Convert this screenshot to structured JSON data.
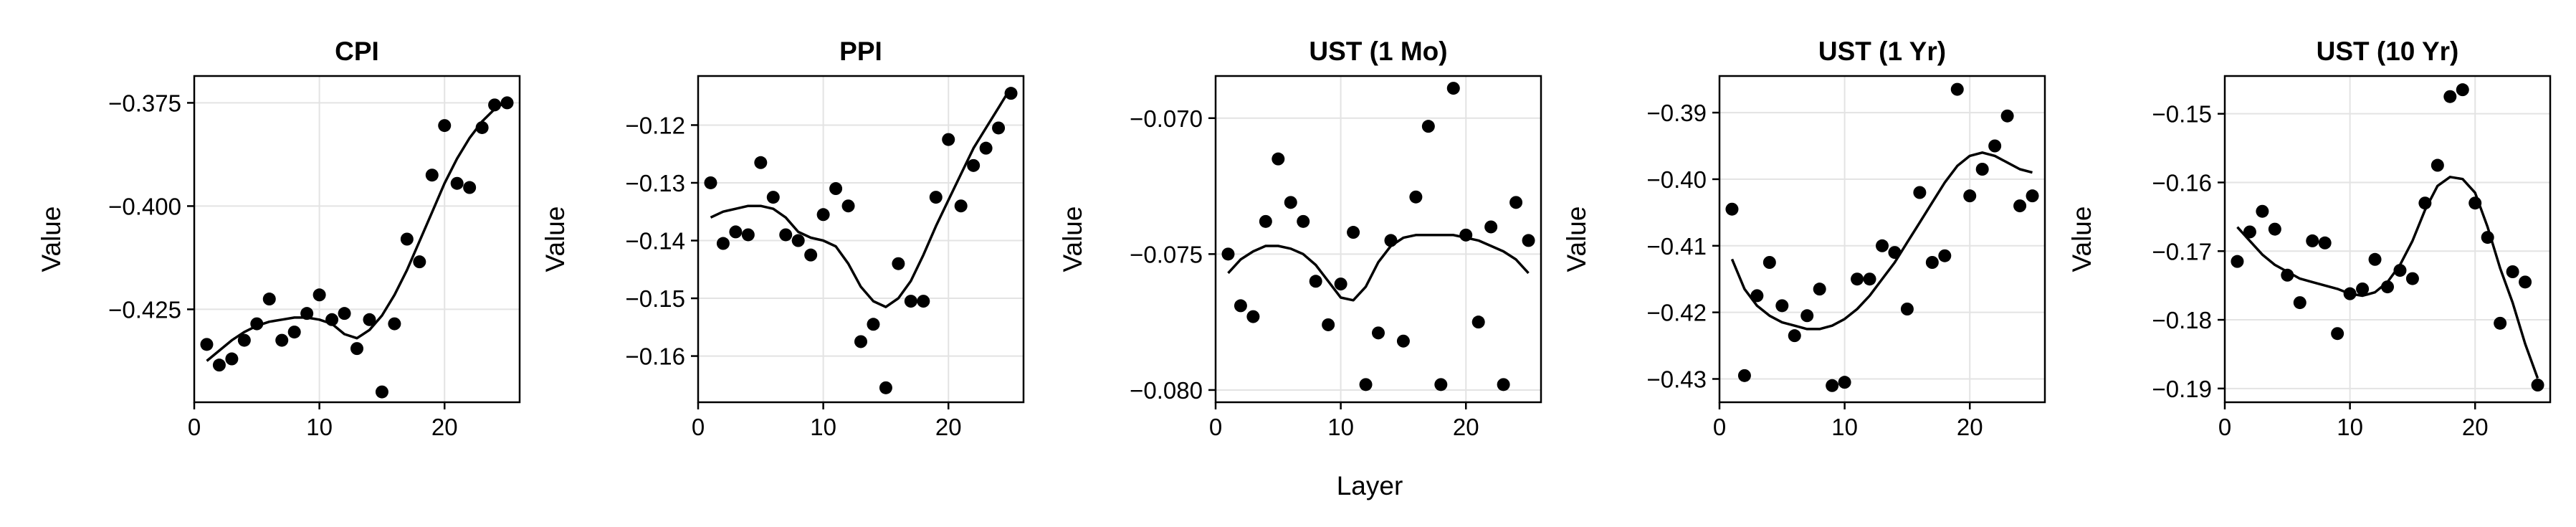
{
  "figure": {
    "xlabel": "Layer"
  },
  "chart_data": [
    {
      "type": "scatter",
      "title": "CPI",
      "ylabel": "Value",
      "xlim": [
        0,
        26
      ],
      "ylim": [
        -0.4475,
        -0.3685
      ],
      "xticks": [
        0,
        10,
        20
      ],
      "yticks": [
        -0.425,
        -0.4,
        -0.375
      ],
      "ytick_labels": [
        "−0.425",
        "−0.400",
        "−0.375"
      ],
      "grid": true,
      "series": [
        {
          "kind": "points",
          "x": [
            1,
            2,
            3,
            4,
            5,
            6,
            7,
            8,
            9,
            10,
            11,
            12,
            13,
            14,
            15,
            16,
            17,
            18,
            19,
            20,
            21,
            22,
            23,
            24,
            25
          ],
          "y": [
            -0.4335,
            -0.4385,
            -0.437,
            -0.4325,
            -0.4285,
            -0.4225,
            -0.4325,
            -0.4305,
            -0.426,
            -0.4215,
            -0.4275,
            -0.426,
            -0.4345,
            -0.4275,
            -0.445,
            -0.4285,
            -0.408,
            -0.4135,
            -0.3925,
            -0.3805,
            -0.3945,
            -0.3955,
            -0.381,
            -0.3755,
            -0.375
          ]
        },
        {
          "kind": "line",
          "x": [
            1,
            2,
            3,
            4,
            5,
            6,
            7,
            8,
            9,
            10,
            11,
            12,
            13,
            14,
            15,
            16,
            17,
            18,
            19,
            20,
            21,
            22,
            23,
            24,
            25
          ],
          "y": [
            -0.4375,
            -0.435,
            -0.4325,
            -0.4305,
            -0.429,
            -0.428,
            -0.4275,
            -0.427,
            -0.427,
            -0.4275,
            -0.4285,
            -0.431,
            -0.432,
            -0.43,
            -0.4265,
            -0.4215,
            -0.4155,
            -0.4085,
            -0.4015,
            -0.3945,
            -0.3885,
            -0.3835,
            -0.3795,
            -0.3765,
            -0.3745
          ]
        }
      ]
    },
    {
      "type": "scatter",
      "title": "PPI",
      "ylabel": "Value",
      "xlim": [
        0,
        26
      ],
      "ylim": [
        -0.168,
        -0.1115
      ],
      "xticks": [
        0,
        10,
        20
      ],
      "yticks": [
        -0.16,
        -0.15,
        -0.14,
        -0.13,
        -0.12
      ],
      "ytick_labels": [
        "−0.16",
        "−0.15",
        "−0.14",
        "−0.13",
        "−0.12"
      ],
      "grid": true,
      "series": [
        {
          "kind": "points",
          "x": [
            1,
            2,
            3,
            4,
            5,
            6,
            7,
            8,
            9,
            10,
            11,
            12,
            13,
            14,
            15,
            16,
            17,
            18,
            19,
            20,
            21,
            22,
            23,
            24,
            25
          ],
          "y": [
            -0.13,
            -0.1405,
            -0.1385,
            -0.139,
            -0.1265,
            -0.1325,
            -0.139,
            -0.14,
            -0.1425,
            -0.1355,
            -0.131,
            -0.134,
            -0.1575,
            -0.1545,
            -0.1655,
            -0.144,
            -0.1505,
            -0.1505,
            -0.1325,
            -0.1225,
            -0.134,
            -0.127,
            -0.124,
            -0.1205,
            -0.1145
          ]
        },
        {
          "kind": "line",
          "x": [
            1,
            2,
            3,
            4,
            5,
            6,
            7,
            8,
            9,
            10,
            11,
            12,
            13,
            14,
            15,
            16,
            17,
            18,
            19,
            20,
            21,
            22,
            23,
            24,
            25
          ],
          "y": [
            -0.136,
            -0.135,
            -0.1345,
            -0.134,
            -0.134,
            -0.1345,
            -0.136,
            -0.1385,
            -0.1395,
            -0.14,
            -0.141,
            -0.144,
            -0.148,
            -0.1505,
            -0.1515,
            -0.15,
            -0.147,
            -0.1425,
            -0.1375,
            -0.133,
            -0.1285,
            -0.124,
            -0.1205,
            -0.117,
            -0.1135
          ]
        }
      ]
    },
    {
      "type": "scatter",
      "title": "UST (1 Mo)",
      "ylabel": "Value",
      "xlim": [
        0,
        26
      ],
      "ylim": [
        -0.08045,
        -0.06845
      ],
      "xticks": [
        0,
        10,
        20
      ],
      "yticks": [
        -0.08,
        -0.075,
        -0.07
      ],
      "ytick_labels": [
        "−0.080",
        "−0.075",
        "−0.070"
      ],
      "grid": true,
      "series": [
        {
          "kind": "points",
          "x": [
            1,
            2,
            3,
            4,
            5,
            6,
            7,
            8,
            9,
            10,
            11,
            12,
            13,
            14,
            15,
            16,
            17,
            18,
            19,
            20,
            21,
            22,
            23,
            24,
            25
          ],
          "y": [
            -0.075,
            -0.0769,
            -0.0773,
            -0.0738,
            -0.0715,
            -0.0731,
            -0.0738,
            -0.076,
            -0.0776,
            -0.0761,
            -0.0742,
            -0.0798,
            -0.0779,
            -0.0745,
            -0.0782,
            -0.0729,
            -0.0703,
            -0.0798,
            -0.0689,
            -0.0743,
            -0.0775,
            -0.074,
            -0.0798,
            -0.0731,
            -0.0745
          ]
        },
        {
          "kind": "line",
          "x": [
            1,
            2,
            3,
            4,
            5,
            6,
            7,
            8,
            9,
            10,
            11,
            12,
            13,
            14,
            15,
            16,
            17,
            18,
            19,
            20,
            21,
            22,
            23,
            24,
            25
          ],
          "y": [
            -0.0757,
            -0.0752,
            -0.0749,
            -0.0747,
            -0.0747,
            -0.0748,
            -0.075,
            -0.0754,
            -0.076,
            -0.0766,
            -0.0767,
            -0.0762,
            -0.0753,
            -0.0747,
            -0.0744,
            -0.0743,
            -0.0743,
            -0.0743,
            -0.0743,
            -0.0744,
            -0.0745,
            -0.0747,
            -0.0749,
            -0.0752,
            -0.0757
          ]
        }
      ]
    },
    {
      "type": "scatter",
      "title": "UST (1 Yr)",
      "ylabel": "Value",
      "xlim": [
        0,
        26
      ],
      "ylim": [
        -0.4335,
        -0.3845
      ],
      "xticks": [
        0,
        10,
        20
      ],
      "yticks": [
        -0.43,
        -0.42,
        -0.41,
        -0.4,
        -0.39
      ],
      "ytick_labels": [
        "−0.43",
        "−0.42",
        "−0.41",
        "−0.40",
        "−0.39"
      ],
      "grid": true,
      "series": [
        {
          "kind": "points",
          "x": [
            1,
            2,
            3,
            4,
            5,
            6,
            7,
            8,
            9,
            10,
            11,
            12,
            13,
            14,
            15,
            16,
            17,
            18,
            19,
            20,
            21,
            22,
            23,
            24,
            25
          ],
          "y": [
            -0.4045,
            -0.4295,
            -0.4175,
            -0.4125,
            -0.419,
            -0.4235,
            -0.4205,
            -0.4165,
            -0.431,
            -0.4305,
            -0.415,
            -0.415,
            -0.41,
            -0.411,
            -0.4195,
            -0.402,
            -0.4125,
            -0.4115,
            -0.3865,
            -0.4025,
            -0.3985,
            -0.395,
            -0.3905,
            -0.404,
            -0.4025
          ]
        },
        {
          "kind": "line",
          "x": [
            1,
            2,
            3,
            4,
            5,
            6,
            7,
            8,
            9,
            10,
            11,
            12,
            13,
            14,
            15,
            16,
            17,
            18,
            19,
            20,
            21,
            22,
            23,
            24,
            25
          ],
          "y": [
            -0.412,
            -0.4165,
            -0.419,
            -0.4205,
            -0.4215,
            -0.422,
            -0.4225,
            -0.4225,
            -0.422,
            -0.421,
            -0.4195,
            -0.4175,
            -0.415,
            -0.4125,
            -0.4095,
            -0.4065,
            -0.4035,
            -0.4005,
            -0.398,
            -0.3965,
            -0.396,
            -0.3965,
            -0.3975,
            -0.3985,
            -0.399
          ]
        }
      ]
    },
    {
      "type": "scatter",
      "title": "UST (10 Yr)",
      "ylabel": "Value",
      "xlim": [
        0,
        26
      ],
      "ylim": [
        -0.192,
        -0.1445
      ],
      "xticks": [
        0,
        10,
        20
      ],
      "yticks": [
        -0.19,
        -0.18,
        -0.17,
        -0.16,
        -0.15
      ],
      "ytick_labels": [
        "−0.19",
        "−0.18",
        "−0.17",
        "−0.16",
        "−0.15"
      ],
      "grid": true,
      "series": [
        {
          "kind": "points",
          "x": [
            1,
            2,
            3,
            4,
            5,
            6,
            7,
            8,
            9,
            10,
            11,
            12,
            13,
            14,
            15,
            16,
            17,
            18,
            19,
            20,
            21,
            22,
            23,
            24,
            25
          ],
          "y": [
            -0.1715,
            -0.1672,
            -0.1642,
            -0.1668,
            -0.1735,
            -0.1775,
            -0.1685,
            -0.1688,
            -0.182,
            -0.1762,
            -0.1755,
            -0.1712,
            -0.1752,
            -0.1728,
            -0.174,
            -0.163,
            -0.1575,
            -0.1475,
            -0.1465,
            -0.163,
            -0.168,
            -0.1805,
            -0.173,
            -0.1745,
            -0.1895
          ]
        },
        {
          "kind": "line",
          "x": [
            1,
            2,
            3,
            4,
            5,
            6,
            7,
            8,
            9,
            10,
            11,
            12,
            13,
            14,
            15,
            16,
            17,
            18,
            19,
            20,
            21,
            22,
            23,
            24,
            25
          ],
          "y": [
            -0.1665,
            -0.1685,
            -0.1705,
            -0.172,
            -0.173,
            -0.174,
            -0.1745,
            -0.175,
            -0.1755,
            -0.1762,
            -0.1765,
            -0.176,
            -0.1745,
            -0.172,
            -0.1685,
            -0.164,
            -0.1605,
            -0.1592,
            -0.1595,
            -0.1615,
            -0.1665,
            -0.1725,
            -0.1775,
            -0.1835,
            -0.1885
          ]
        }
      ]
    }
  ]
}
